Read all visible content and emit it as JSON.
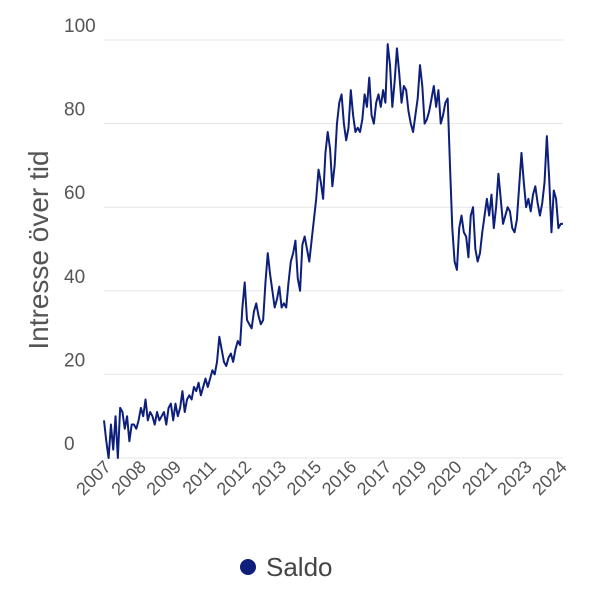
{
  "chart_data": {
    "type": "line",
    "title": "",
    "xlabel": "",
    "ylabel": "Intresse över tid",
    "ylim": [
      0,
      100
    ],
    "yticks": [
      0,
      20,
      40,
      60,
      80,
      100
    ],
    "xticks": [
      "2007",
      "2008",
      "2009",
      "2011",
      "2012",
      "2013",
      "2015",
      "2016",
      "2017",
      "2019",
      "2020",
      "2021",
      "2023",
      "2024"
    ],
    "grid": true,
    "legend_position": "bottom",
    "series": [
      {
        "name": "Saldo",
        "color": "#0d1f7a",
        "values": [
          9,
          4,
          0,
          8,
          2,
          10,
          0,
          12,
          11,
          7,
          10,
          4,
          8,
          8,
          7,
          9,
          12,
          10,
          14,
          9,
          11,
          10,
          8,
          11,
          9,
          10,
          11,
          8,
          12,
          13,
          9,
          13,
          10,
          12,
          16,
          11,
          14,
          15,
          14,
          17,
          16,
          18,
          15,
          17,
          19,
          17,
          19,
          21,
          20,
          23,
          29,
          26,
          23,
          22,
          24,
          25,
          23,
          26,
          28,
          27,
          36,
          42,
          33,
          32,
          31,
          35,
          37,
          34,
          32,
          33,
          42,
          49,
          44,
          40,
          36,
          38,
          41,
          36,
          37,
          36,
          42,
          47,
          49,
          52,
          43,
          40,
          51,
          53,
          50,
          47,
          52,
          57,
          62,
          69,
          66,
          62,
          73,
          78,
          74,
          65,
          70,
          80,
          85,
          87,
          80,
          76,
          79,
          88,
          82,
          78,
          79,
          78,
          81,
          87,
          84,
          91,
          82,
          80,
          85,
          87,
          84,
          88,
          85,
          99,
          94,
          84,
          90,
          98,
          92,
          85,
          89,
          88,
          83,
          80,
          78,
          82,
          86,
          94,
          89,
          80,
          81,
          83,
          86,
          89,
          84,
          88,
          80,
          82,
          85,
          86,
          70,
          55,
          47,
          45,
          55,
          58,
          54,
          53,
          48,
          58,
          60,
          50,
          47,
          49,
          54,
          58,
          62,
          58,
          63,
          55,
          60,
          68,
          62,
          56,
          58,
          60,
          59,
          55,
          54,
          57,
          65,
          73,
          66,
          60,
          62,
          59,
          63,
          65,
          61,
          58,
          61,
          66,
          77,
          67,
          54,
          64,
          62,
          55,
          56,
          56
        ]
      }
    ]
  },
  "legend": {
    "items": [
      {
        "label": "Saldo",
        "color": "#0d1f7a"
      }
    ]
  }
}
